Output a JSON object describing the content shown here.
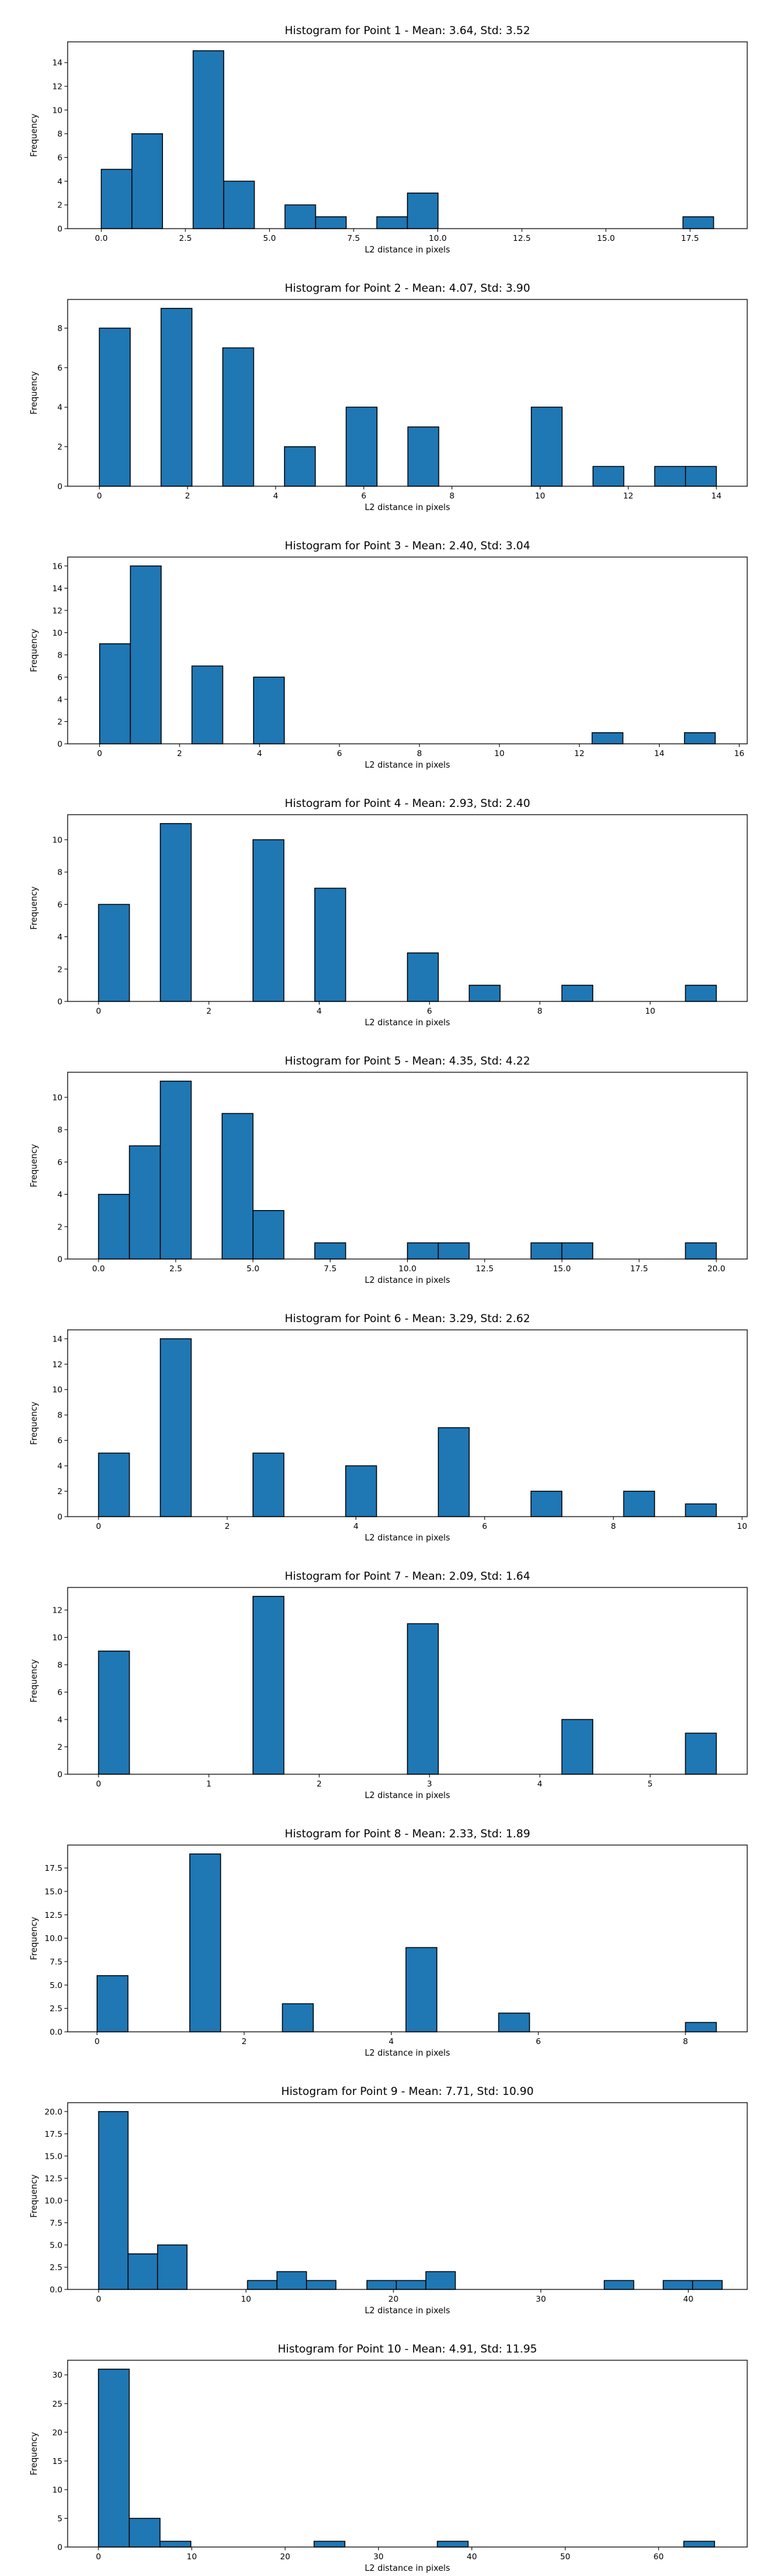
{
  "figure": {
    "background": "#ffffff",
    "bar_color": "#1f77b4",
    "edge_color": "#000000"
  },
  "chart_data": [
    {
      "type": "bar",
      "title": "Histogram for Point 1 - Mean: 3.64, Std: 3.52",
      "xlabel": "L2 distance in pixels",
      "ylabel": "Frequency",
      "xlim": [
        -1.0,
        19.2
      ],
      "ylim": [
        0,
        15.75
      ],
      "xticks": [
        0.0,
        2.5,
        5.0,
        7.5,
        10.0,
        12.5,
        15.0,
        17.5
      ],
      "xtick_labels": [
        "0.0",
        "2.5",
        "5.0",
        "7.5",
        "10.0",
        "12.5",
        "15.0",
        "17.5"
      ],
      "yticks": [
        0,
        2,
        4,
        6,
        8,
        10,
        12,
        14
      ],
      "ytick_labels": [
        "0",
        "2",
        "4",
        "6",
        "8",
        "10",
        "12",
        "14"
      ],
      "bins": [
        [
          0.0,
          0.91,
          5
        ],
        [
          0.91,
          1.82,
          8
        ],
        [
          2.73,
          3.64,
          15
        ],
        [
          3.64,
          4.55,
          4
        ],
        [
          5.46,
          6.37,
          2
        ],
        [
          6.37,
          7.28,
          1
        ],
        [
          8.19,
          9.1,
          1
        ],
        [
          9.1,
          10.01,
          3
        ],
        [
          17.29,
          18.2,
          1
        ]
      ]
    },
    {
      "type": "bar",
      "title": "Histogram for Point 2 - Mean: 4.07, Std: 3.90",
      "xlabel": "L2 distance in pixels",
      "ylabel": "Frequency",
      "xlim": [
        -0.72,
        14.7
      ],
      "ylim": [
        0,
        9.45
      ],
      "xticks": [
        0,
        2,
        4,
        6,
        8,
        10,
        12,
        14
      ],
      "xtick_labels": [
        "0",
        "2",
        "4",
        "6",
        "8",
        "10",
        "12",
        "14"
      ],
      "yticks": [
        0,
        2,
        4,
        6,
        8
      ],
      "ytick_labels": [
        "0",
        "2",
        "4",
        "6",
        "8"
      ],
      "bins": [
        [
          0.0,
          0.7,
          8
        ],
        [
          1.4,
          2.1,
          9
        ],
        [
          2.8,
          3.5,
          7
        ],
        [
          4.2,
          4.9,
          2
        ],
        [
          5.6,
          6.3,
          4
        ],
        [
          7.0,
          7.7,
          3
        ],
        [
          9.8,
          10.5,
          4
        ],
        [
          11.2,
          11.9,
          1
        ],
        [
          12.6,
          13.3,
          1
        ],
        [
          13.3,
          14.0,
          1
        ]
      ]
    },
    {
      "type": "bar",
      "title": "Histogram for Point 3 - Mean: 2.40, Std: 3.04",
      "xlabel": "L2 distance in pixels",
      "ylabel": "Frequency",
      "xlim": [
        -0.8,
        16.2
      ],
      "ylim": [
        0,
        16.8
      ],
      "xticks": [
        0,
        2,
        4,
        6,
        8,
        10,
        12,
        14,
        16
      ],
      "xtick_labels": [
        "0",
        "2",
        "4",
        "6",
        "8",
        "10",
        "12",
        "14",
        "16"
      ],
      "yticks": [
        0,
        2,
        4,
        6,
        8,
        10,
        12,
        14,
        16
      ],
      "ytick_labels": [
        "0",
        "2",
        "4",
        "6",
        "8",
        "10",
        "12",
        "14",
        "16"
      ],
      "bins": [
        [
          0.0,
          0.77,
          9
        ],
        [
          0.77,
          1.54,
          16
        ],
        [
          2.31,
          3.08,
          7
        ],
        [
          3.85,
          4.62,
          6
        ],
        [
          12.32,
          13.09,
          1
        ],
        [
          14.63,
          15.4,
          1
        ]
      ]
    },
    {
      "type": "bar",
      "title": "Histogram for Point 4 - Mean: 2.93, Std: 2.40",
      "xlabel": "L2 distance in pixels",
      "ylabel": "Frequency",
      "xlim": [
        -0.56,
        11.76
      ],
      "ylim": [
        0,
        11.55
      ],
      "xticks": [
        0,
        2,
        4,
        6,
        8,
        10
      ],
      "xtick_labels": [
        "0",
        "2",
        "4",
        "6",
        "8",
        "10"
      ],
      "yticks": [
        0,
        2,
        4,
        6,
        8,
        10
      ],
      "ytick_labels": [
        "0",
        "2",
        "4",
        "6",
        "8",
        "10"
      ],
      "bins": [
        [
          0.0,
          0.56,
          6
        ],
        [
          1.12,
          1.68,
          11
        ],
        [
          2.8,
          3.36,
          10
        ],
        [
          3.92,
          4.48,
          7
        ],
        [
          5.6,
          6.16,
          3
        ],
        [
          6.72,
          7.28,
          1
        ],
        [
          8.4,
          8.96,
          1
        ],
        [
          10.64,
          11.2,
          1
        ]
      ]
    },
    {
      "type": "bar",
      "title": "Histogram for Point 5 - Mean: 4.35, Std: 4.22",
      "xlabel": "L2 distance in pixels",
      "ylabel": "Frequency",
      "xlim": [
        -1.0,
        21.0
      ],
      "ylim": [
        0,
        11.55
      ],
      "xticks": [
        0.0,
        2.5,
        5.0,
        7.5,
        10.0,
        12.5,
        15.0,
        17.5,
        20.0
      ],
      "xtick_labels": [
        "0.0",
        "2.5",
        "5.0",
        "7.5",
        "10.0",
        "12.5",
        "15.0",
        "17.5",
        "20.0"
      ],
      "yticks": [
        0,
        2,
        4,
        6,
        8,
        10
      ],
      "ytick_labels": [
        "0",
        "2",
        "4",
        "6",
        "8",
        "10"
      ],
      "bins": [
        [
          0.0,
          1.0,
          4
        ],
        [
          1.0,
          2.0,
          7
        ],
        [
          2.0,
          3.0,
          11
        ],
        [
          4.0,
          5.0,
          9
        ],
        [
          5.0,
          6.0,
          3
        ],
        [
          7.0,
          8.0,
          1
        ],
        [
          10.0,
          11.0,
          1
        ],
        [
          11.0,
          12.0,
          1
        ],
        [
          14.0,
          15.0,
          1
        ],
        [
          15.0,
          16.0,
          1
        ],
        [
          19.0,
          20.0,
          1
        ]
      ]
    },
    {
      "type": "bar",
      "title": "Histogram for Point 6 - Mean: 3.29, Std: 2.62",
      "xlabel": "L2 distance in pixels",
      "ylabel": "Frequency",
      "xlim": [
        -0.48,
        10.08
      ],
      "ylim": [
        0,
        14.7
      ],
      "xticks": [
        0,
        2,
        4,
        6,
        8,
        10
      ],
      "xtick_labels": [
        "0",
        "2",
        "4",
        "6",
        "8",
        "10"
      ],
      "yticks": [
        0,
        2,
        4,
        6,
        8,
        10,
        12,
        14
      ],
      "ytick_labels": [
        "0",
        "2",
        "4",
        "6",
        "8",
        "10",
        "12",
        "14"
      ],
      "bins": [
        [
          0.0,
          0.48,
          5
        ],
        [
          0.96,
          1.44,
          14
        ],
        [
          2.4,
          2.88,
          5
        ],
        [
          3.84,
          4.32,
          4
        ],
        [
          5.28,
          5.76,
          7
        ],
        [
          6.72,
          7.2,
          2
        ],
        [
          8.16,
          8.64,
          2
        ],
        [
          9.12,
          9.6,
          1
        ]
      ]
    },
    {
      "type": "bar",
      "title": "Histogram for Point 7 - Mean: 2.09, Std: 1.64",
      "xlabel": "L2 distance in pixels",
      "ylabel": "Frequency",
      "xlim": [
        -0.28,
        5.88
      ],
      "ylim": [
        0,
        13.65
      ],
      "xticks": [
        0,
        1,
        2,
        3,
        4,
        5
      ],
      "xtick_labels": [
        "0",
        "1",
        "2",
        "3",
        "4",
        "5"
      ],
      "yticks": [
        0,
        2,
        4,
        6,
        8,
        10,
        12
      ],
      "ytick_labels": [
        "0",
        "2",
        "4",
        "6",
        "8",
        "10",
        "12"
      ],
      "bins": [
        [
          0.0,
          0.28,
          9
        ],
        [
          1.4,
          1.68,
          13
        ],
        [
          2.8,
          3.08,
          11
        ],
        [
          4.2,
          4.48,
          4
        ],
        [
          5.32,
          5.6,
          3
        ]
      ]
    },
    {
      "type": "bar",
      "title": "Histogram for Point 8 - Mean: 2.33, Std: 1.89",
      "xlabel": "L2 distance in pixels",
      "ylabel": "Frequency",
      "xlim": [
        -0.4,
        8.84
      ],
      "ylim": [
        0,
        19.95
      ],
      "xticks": [
        0,
        2,
        4,
        6,
        8
      ],
      "xtick_labels": [
        "0",
        "2",
        "4",
        "6",
        "8"
      ],
      "yticks": [
        0.0,
        2.5,
        5.0,
        7.5,
        10.0,
        12.5,
        15.0,
        17.5
      ],
      "ytick_labels": [
        "0.0",
        "2.5",
        "5.0",
        "7.5",
        "10.0",
        "12.5",
        "15.0",
        "17.5"
      ],
      "bins": [
        [
          0.0,
          0.42,
          6
        ],
        [
          1.26,
          1.68,
          19
        ],
        [
          2.52,
          2.94,
          3
        ],
        [
          4.2,
          4.62,
          9
        ],
        [
          5.46,
          5.88,
          2
        ],
        [
          8.0,
          8.42,
          1
        ]
      ]
    },
    {
      "type": "bar",
      "title": "Histogram for Point 9 - Mean: 7.71, Std: 10.90",
      "xlabel": "L2 distance in pixels",
      "ylabel": "Frequency",
      "xlim": [
        -2.1,
        44.0
      ],
      "ylim": [
        0,
        21.0
      ],
      "xticks": [
        0,
        10,
        20,
        30,
        40
      ],
      "xtick_labels": [
        "0",
        "10",
        "20",
        "30",
        "40"
      ],
      "yticks": [
        0.0,
        2.5,
        5.0,
        7.5,
        10.0,
        12.5,
        15.0,
        17.5,
        20.0
      ],
      "ytick_labels": [
        "0.0",
        "2.5",
        "5.0",
        "7.5",
        "10.0",
        "12.5",
        "15.0",
        "17.5",
        "20.0"
      ],
      "bins": [
        [
          0.0,
          2.0,
          20
        ],
        [
          2.0,
          4.0,
          4
        ],
        [
          4.0,
          6.0,
          5
        ],
        [
          10.1,
          12.1,
          1
        ],
        [
          12.1,
          14.1,
          2
        ],
        [
          14.1,
          16.1,
          1
        ],
        [
          18.2,
          20.2,
          1
        ],
        [
          20.2,
          22.2,
          1
        ],
        [
          22.2,
          24.2,
          2
        ],
        [
          34.3,
          36.3,
          1
        ],
        [
          38.3,
          40.3,
          1
        ],
        [
          40.3,
          42.3,
          1
        ]
      ]
    },
    {
      "type": "bar",
      "title": "Histogram for Point 10 - Mean: 4.91, Std: 11.95",
      "xlabel": "L2 distance in pixels",
      "ylabel": "Frequency",
      "xlim": [
        -3.3,
        69.5
      ],
      "ylim": [
        0,
        32.55
      ],
      "xticks": [
        0,
        10,
        20,
        30,
        40,
        50,
        60
      ],
      "xtick_labels": [
        "0",
        "10",
        "20",
        "30",
        "40",
        "50",
        "60"
      ],
      "yticks": [
        0,
        5,
        10,
        15,
        20,
        25,
        30
      ],
      "ytick_labels": [
        "0",
        "5",
        "10",
        "15",
        "20",
        "25",
        "30"
      ],
      "bins": [
        [
          0.0,
          3.3,
          31
        ],
        [
          3.3,
          6.6,
          5
        ],
        [
          6.6,
          9.9,
          1
        ],
        [
          23.1,
          26.4,
          1
        ],
        [
          36.3,
          39.6,
          1
        ],
        [
          62.7,
          66.0,
          1
        ]
      ]
    }
  ]
}
